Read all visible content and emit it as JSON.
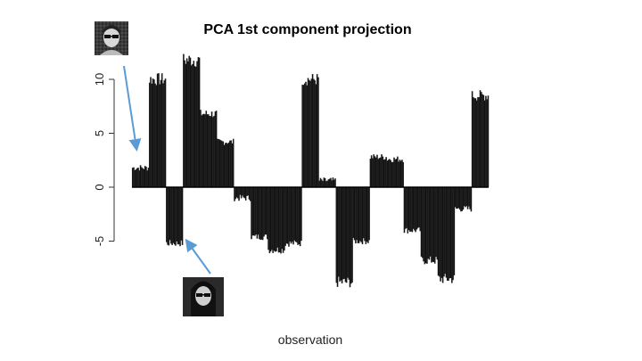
{
  "chart_data": {
    "type": "bar",
    "title": "PCA 1st component projection",
    "xlabel": "observation",
    "ylabel": "",
    "ylim": [
      -10.5,
      12
    ],
    "yticks": [
      -5,
      0,
      5,
      10
    ],
    "ytick_labels": [
      "-5",
      "0",
      "5",
      "10"
    ],
    "bar_color": "#111111",
    "segments": [
      {
        "n": 15,
        "value": 1.8
      },
      {
        "n": 15,
        "value": 10.0
      },
      {
        "n": 15,
        "value": -5.2
      },
      {
        "n": 15,
        "value": 11.8
      },
      {
        "n": 15,
        "value": 6.8
      },
      {
        "n": 15,
        "value": 4.2
      },
      {
        "n": 15,
        "value": -1.0
      },
      {
        "n": 15,
        "value": -4.6
      },
      {
        "n": 15,
        "value": -5.8
      },
      {
        "n": 15,
        "value": -5.2
      },
      {
        "n": 15,
        "value": 10.0
      },
      {
        "n": 15,
        "value": 0.6
      },
      {
        "n": 15,
        "value": -8.8
      },
      {
        "n": 15,
        "value": -5.0
      },
      {
        "n": 15,
        "value": 2.8
      },
      {
        "n": 15,
        "value": 2.6
      },
      {
        "n": 15,
        "value": -4.0
      },
      {
        "n": 15,
        "value": -6.8
      },
      {
        "n": 15,
        "value": -8.5
      },
      {
        "n": 15,
        "value": -2.0
      },
      {
        "n": 15,
        "value": 8.5
      }
    ]
  },
  "annotations": {
    "top_thumbnail": "face-with-sunglasses-thumbnail",
    "bottom_thumbnail": "face-with-sunglasses-thumbnail",
    "arrow_color": "#5b9bd5"
  }
}
